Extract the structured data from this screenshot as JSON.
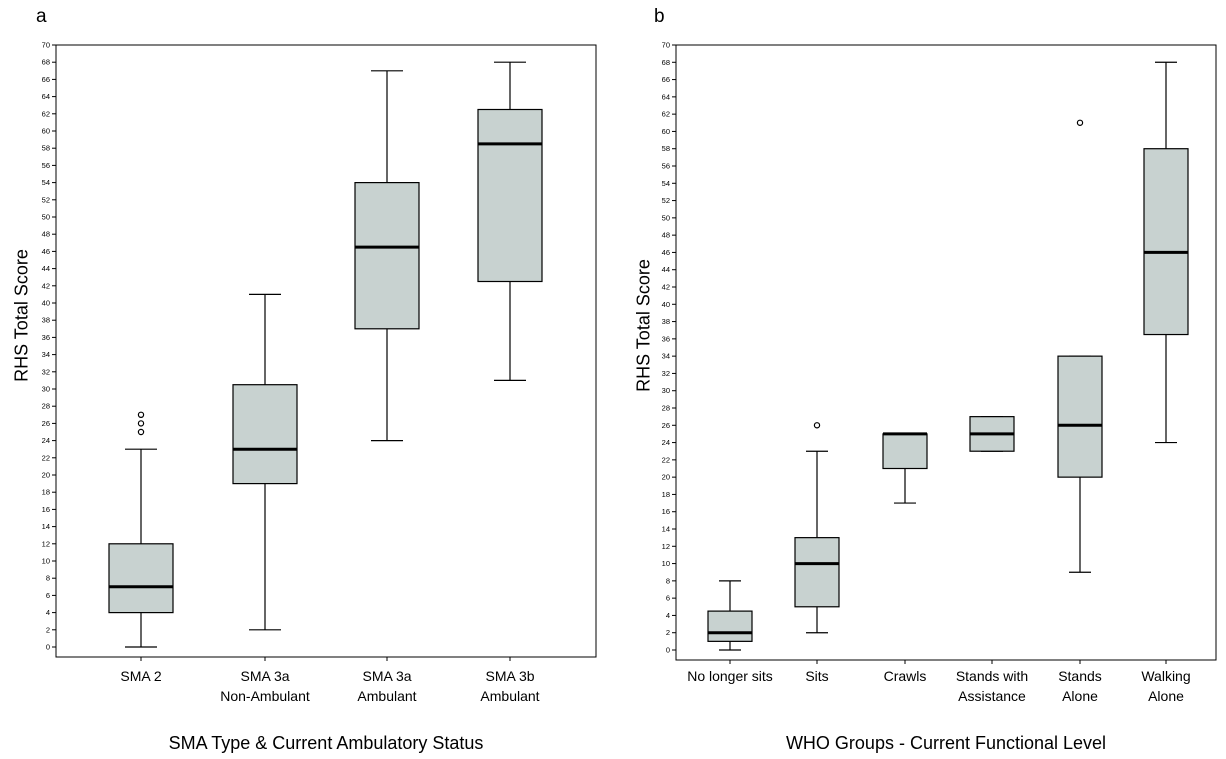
{
  "panels": [
    {
      "letter": "a",
      "ylabel": "RHS Total Score",
      "xlabel": "SMA Type & Current Ambulatory Status"
    },
    {
      "letter": "b",
      "ylabel": "RHS Total Score",
      "xlabel": "WHO Groups - Current Functional Level"
    }
  ],
  "chart_data": [
    {
      "type": "boxplot",
      "title": "",
      "ylabel": "RHS Total Score",
      "xlabel": "SMA Type & Current Ambulatory Status",
      "ylim": [
        0,
        70
      ],
      "ytick_step": 2,
      "box_color": "#c8d2d0",
      "categories": [
        [
          "SMA 2"
        ],
        [
          "SMA 3a",
          "Non-Ambulant"
        ],
        [
          "SMA 3a",
          "Ambulant"
        ],
        [
          "SMA 3b",
          "Ambulant"
        ]
      ],
      "boxes": [
        {
          "whisker_low": 0,
          "q1": 4,
          "median": 7,
          "q3": 12,
          "whisker_high": 23,
          "outliers": [
            25,
            26,
            27
          ]
        },
        {
          "whisker_low": 2,
          "q1": 19,
          "median": 23,
          "q3": 30.5,
          "whisker_high": 41,
          "outliers": []
        },
        {
          "whisker_low": 24,
          "q1": 37,
          "median": 46.5,
          "q3": 54,
          "whisker_high": 67,
          "outliers": []
        },
        {
          "whisker_low": 31,
          "q1": 42.5,
          "median": 58.5,
          "q3": 62.5,
          "whisker_high": 68,
          "outliers": []
        }
      ]
    },
    {
      "type": "boxplot",
      "title": "",
      "ylabel": "RHS Total Score",
      "xlabel": "WHO Groups - Current Functional Level",
      "ylim": [
        0,
        70
      ],
      "ytick_step": 2,
      "box_color": "#c8d2d0",
      "categories": [
        [
          "No longer sits"
        ],
        [
          "Sits"
        ],
        [
          "Crawls"
        ],
        [
          "Stands with",
          "Assistance"
        ],
        [
          "Stands",
          "Alone"
        ],
        [
          "Walking",
          "Alone"
        ]
      ],
      "boxes": [
        {
          "whisker_low": 0,
          "q1": 1,
          "median": 2,
          "q3": 4.5,
          "whisker_high": 8,
          "outliers": []
        },
        {
          "whisker_low": 2,
          "q1": 5,
          "median": 10,
          "q3": 13,
          "whisker_high": 23,
          "outliers": [
            26
          ]
        },
        {
          "whisker_low": 17,
          "q1": 21,
          "median": 25,
          "q3": 25,
          "whisker_high": 25,
          "outliers": []
        },
        {
          "whisker_low": 23,
          "q1": 23,
          "median": 25,
          "q3": 27,
          "whisker_high": 27,
          "outliers": []
        },
        {
          "whisker_low": 9,
          "q1": 20,
          "median": 26,
          "q3": 34,
          "whisker_high": 34,
          "outliers": [
            61
          ]
        },
        {
          "whisker_low": 24,
          "q1": 36.5,
          "median": 46,
          "q3": 58,
          "whisker_high": 68,
          "outliers": []
        }
      ]
    }
  ]
}
